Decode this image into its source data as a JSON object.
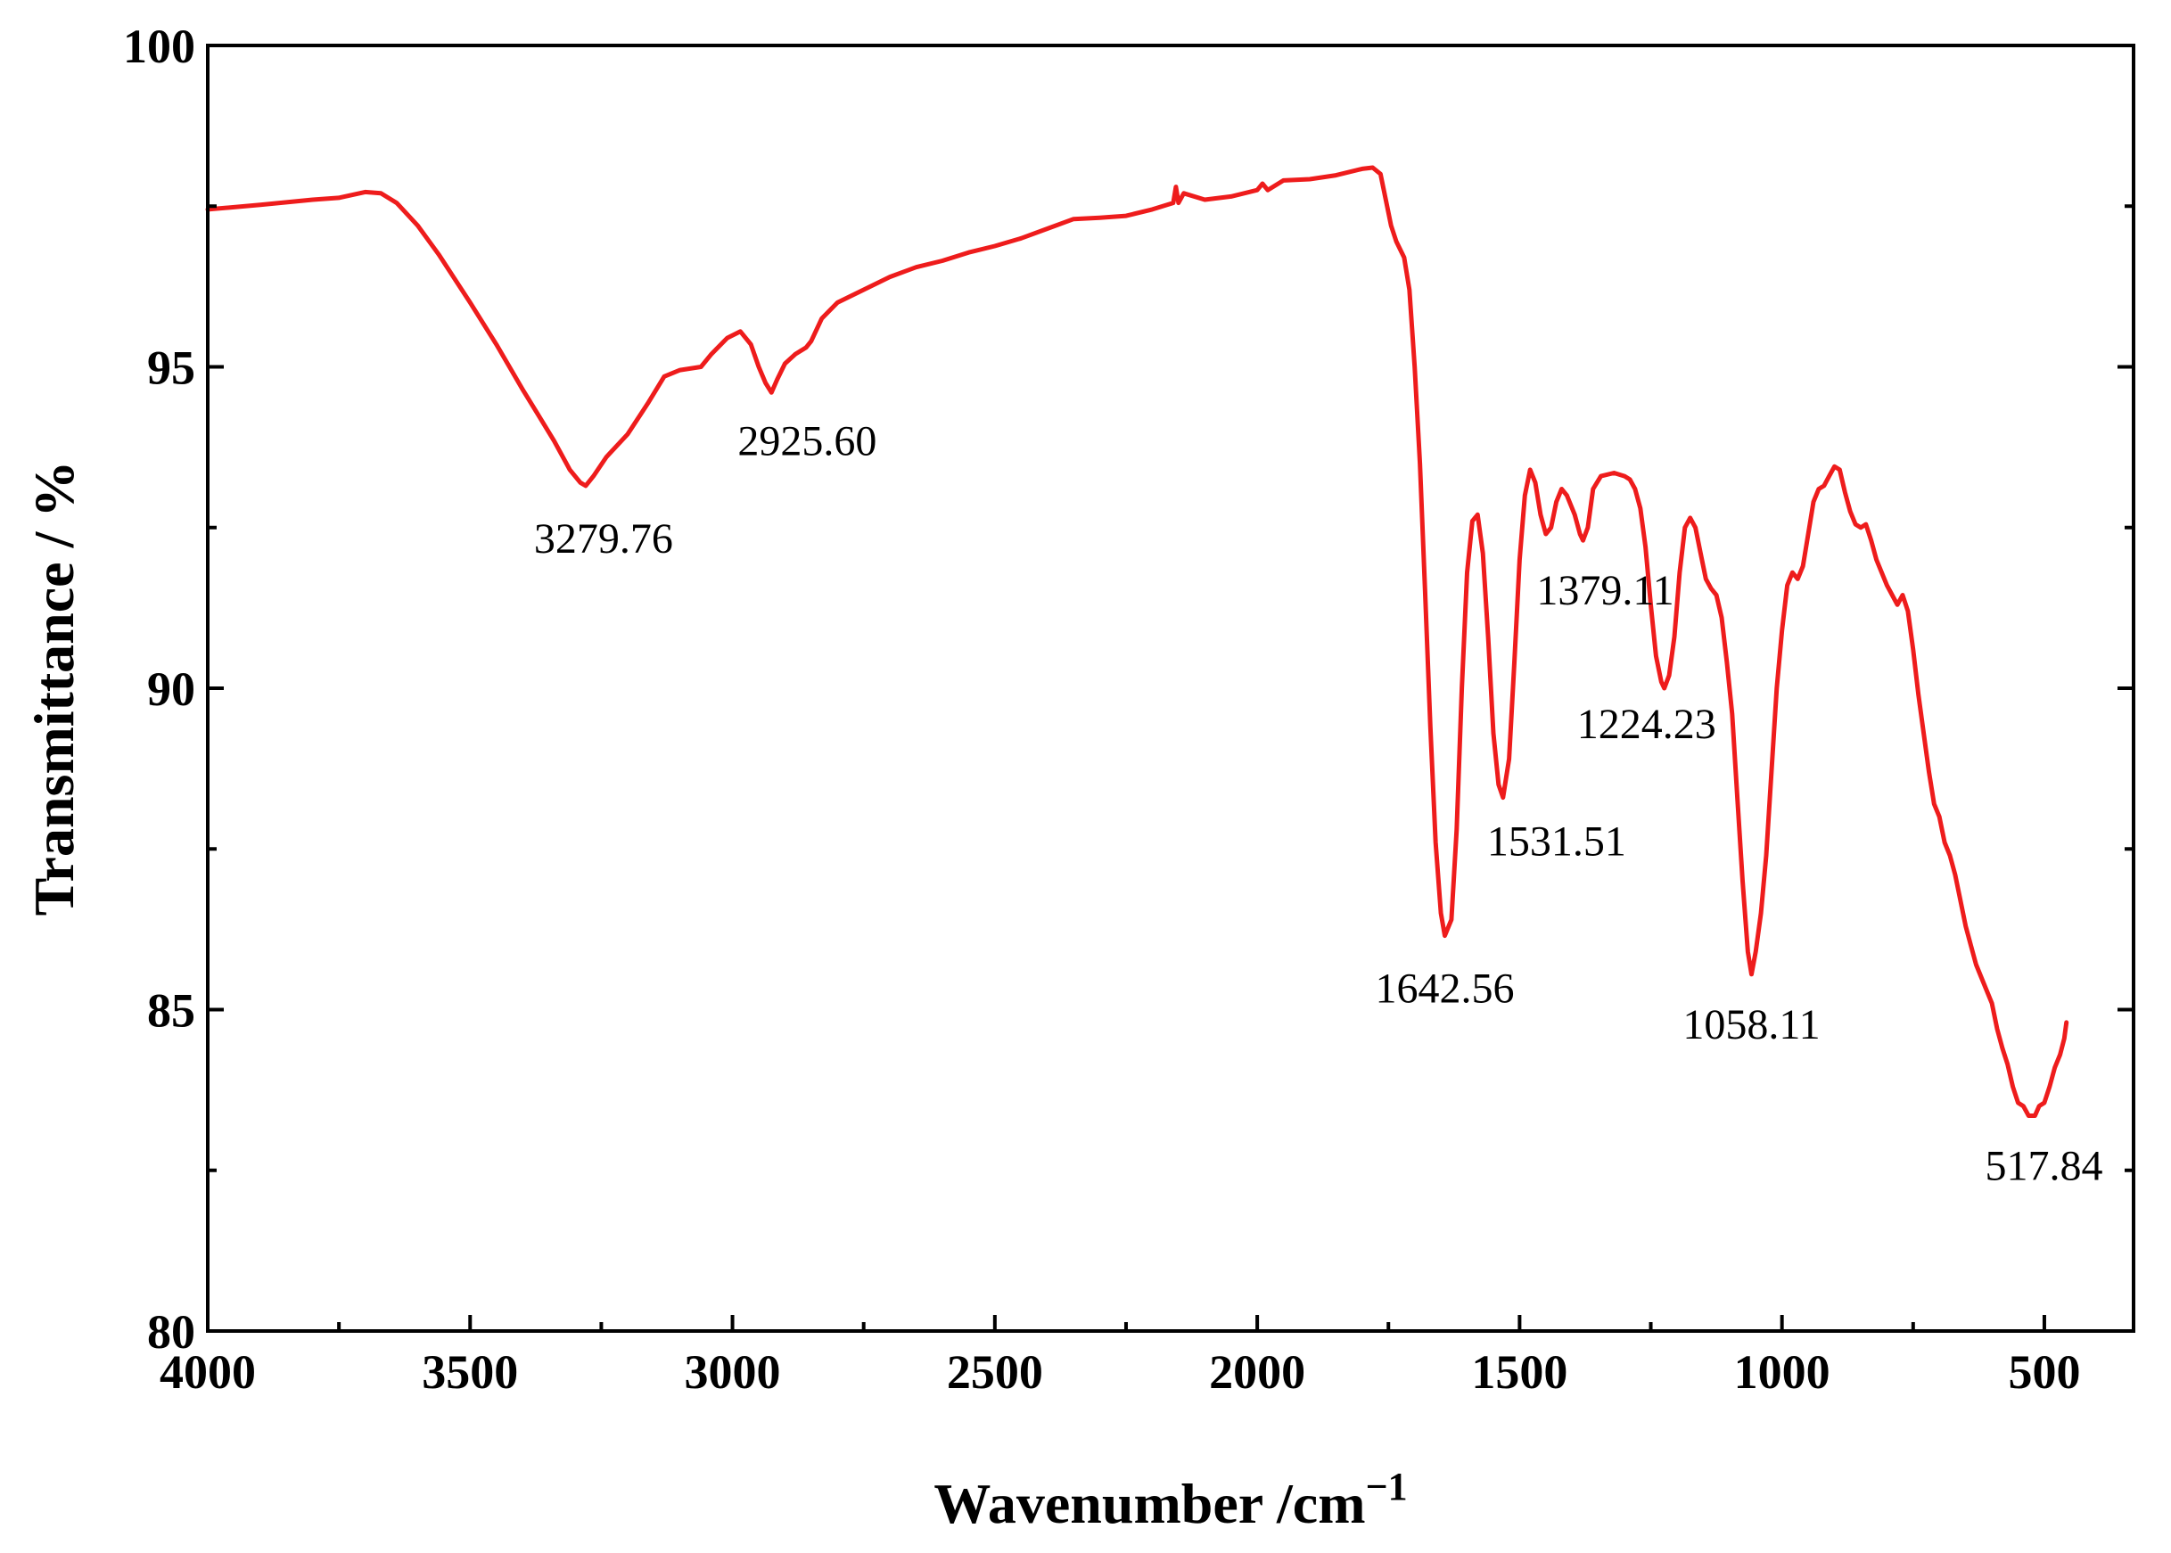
{
  "chart_data": {
    "type": "line",
    "xlabel": "Wavenumber /cm",
    "xlabel_superscript": "−1",
    "ylabel": "Transmittance / %",
    "xlim": [
      4000,
      330
    ],
    "ylim": [
      80,
      100
    ],
    "x_reversed": true,
    "x_ticks": [
      4000,
      3500,
      3000,
      2500,
      2000,
      1500,
      1000,
      500
    ],
    "x_tick_labels": [
      "4000",
      "3500",
      "3000",
      "2500",
      "2000",
      "1500",
      "1000",
      "500"
    ],
    "x_minor_ticks": [
      3750,
      3250,
      2750,
      2250,
      1750,
      1250,
      750
    ],
    "y_ticks": [
      80,
      85,
      90,
      95,
      100
    ],
    "y_tick_labels": [
      "80",
      "85",
      "90",
      "95",
      "100"
    ],
    "y_minor_ticks": [
      82.5,
      87.5,
      92.5,
      97.5
    ],
    "grid": false,
    "line_color": "#ee1c1c",
    "series": [
      {
        "color": "#ee1c1c",
        "points": [
          [
            4000,
            97.45
          ],
          [
            3900,
            97.52
          ],
          [
            3800,
            97.6
          ],
          [
            3750,
            97.63
          ],
          [
            3700,
            97.72
          ],
          [
            3670,
            97.7
          ],
          [
            3640,
            97.55
          ],
          [
            3600,
            97.2
          ],
          [
            3560,
            96.75
          ],
          [
            3500,
            96.0
          ],
          [
            3450,
            95.35
          ],
          [
            3400,
            94.65
          ],
          [
            3370,
            94.25
          ],
          [
            3340,
            93.85
          ],
          [
            3310,
            93.4
          ],
          [
            3290,
            93.2
          ],
          [
            3279.76,
            93.15
          ],
          [
            3265,
            93.3
          ],
          [
            3240,
            93.6
          ],
          [
            3200,
            93.95
          ],
          [
            3160,
            94.45
          ],
          [
            3130,
            94.85
          ],
          [
            3100,
            94.95
          ],
          [
            3060,
            95.0
          ],
          [
            3040,
            95.2
          ],
          [
            3010,
            95.45
          ],
          [
            2985,
            95.55
          ],
          [
            2965,
            95.35
          ],
          [
            2950,
            95.0
          ],
          [
            2937,
            94.75
          ],
          [
            2925.6,
            94.6
          ],
          [
            2915,
            94.8
          ],
          [
            2900,
            95.05
          ],
          [
            2880,
            95.2
          ],
          [
            2860,
            95.3
          ],
          [
            2850,
            95.4
          ],
          [
            2830,
            95.75
          ],
          [
            2800,
            96.0
          ],
          [
            2750,
            96.2
          ],
          [
            2700,
            96.4
          ],
          [
            2650,
            96.55
          ],
          [
            2600,
            96.65
          ],
          [
            2550,
            96.78
          ],
          [
            2500,
            96.88
          ],
          [
            2450,
            97.0
          ],
          [
            2400,
            97.15
          ],
          [
            2350,
            97.3
          ],
          [
            2300,
            97.32
          ],
          [
            2250,
            97.35
          ],
          [
            2200,
            97.45
          ],
          [
            2160,
            97.55
          ],
          [
            2155,
            97.8
          ],
          [
            2150,
            97.55
          ],
          [
            2140,
            97.7
          ],
          [
            2100,
            97.6
          ],
          [
            2050,
            97.65
          ],
          [
            2000,
            97.75
          ],
          [
            1990,
            97.85
          ],
          [
            1980,
            97.75
          ],
          [
            1950,
            97.9
          ],
          [
            1900,
            97.92
          ],
          [
            1850,
            97.98
          ],
          [
            1800,
            98.08
          ],
          [
            1780,
            98.1
          ],
          [
            1765,
            98.0
          ],
          [
            1755,
            97.6
          ],
          [
            1745,
            97.2
          ],
          [
            1735,
            96.95
          ],
          [
            1720,
            96.7
          ],
          [
            1710,
            96.2
          ],
          [
            1700,
            95.0
          ],
          [
            1690,
            93.5
          ],
          [
            1680,
            91.5
          ],
          [
            1670,
            89.4
          ],
          [
            1660,
            87.6
          ],
          [
            1650,
            86.5
          ],
          [
            1642.56,
            86.15
          ],
          [
            1630,
            86.4
          ],
          [
            1620,
            87.8
          ],
          [
            1610,
            90.0
          ],
          [
            1600,
            91.8
          ],
          [
            1590,
            92.6
          ],
          [
            1580,
            92.7
          ],
          [
            1570,
            92.1
          ],
          [
            1560,
            90.8
          ],
          [
            1550,
            89.3
          ],
          [
            1540,
            88.5
          ],
          [
            1531.51,
            88.3
          ],
          [
            1520,
            88.9
          ],
          [
            1510,
            90.4
          ],
          [
            1500,
            92.0
          ],
          [
            1490,
            93.0
          ],
          [
            1480,
            93.4
          ],
          [
            1470,
            93.2
          ],
          [
            1460,
            92.7
          ],
          [
            1450,
            92.4
          ],
          [
            1440,
            92.5
          ],
          [
            1430,
            92.9
          ],
          [
            1420,
            93.1
          ],
          [
            1410,
            93.0
          ],
          [
            1395,
            92.7
          ],
          [
            1385,
            92.4
          ],
          [
            1379.11,
            92.3
          ],
          [
            1370,
            92.5
          ],
          [
            1360,
            93.1
          ],
          [
            1345,
            93.3
          ],
          [
            1320,
            93.35
          ],
          [
            1300,
            93.3
          ],
          [
            1290,
            93.25
          ],
          [
            1280,
            93.1
          ],
          [
            1270,
            92.8
          ],
          [
            1260,
            92.2
          ],
          [
            1250,
            91.3
          ],
          [
            1240,
            90.5
          ],
          [
            1230,
            90.1
          ],
          [
            1224.23,
            90.0
          ],
          [
            1215,
            90.2
          ],
          [
            1205,
            90.8
          ],
          [
            1195,
            91.8
          ],
          [
            1185,
            92.5
          ],
          [
            1175,
            92.65
          ],
          [
            1165,
            92.5
          ],
          [
            1155,
            92.1
          ],
          [
            1145,
            91.7
          ],
          [
            1135,
            91.55
          ],
          [
            1125,
            91.45
          ],
          [
            1115,
            91.1
          ],
          [
            1105,
            90.4
          ],
          [
            1095,
            89.6
          ],
          [
            1085,
            88.3
          ],
          [
            1075,
            87.0
          ],
          [
            1065,
            85.9
          ],
          [
            1058.11,
            85.55
          ],
          [
            1050,
            85.9
          ],
          [
            1040,
            86.5
          ],
          [
            1030,
            87.4
          ],
          [
            1020,
            88.7
          ],
          [
            1010,
            90.0
          ],
          [
            1000,
            90.9
          ],
          [
            990,
            91.6
          ],
          [
            980,
            91.8
          ],
          [
            970,
            91.7
          ],
          [
            960,
            91.9
          ],
          [
            950,
            92.4
          ],
          [
            940,
            92.9
          ],
          [
            930,
            93.1
          ],
          [
            920,
            93.15
          ],
          [
            910,
            93.3
          ],
          [
            900,
            93.45
          ],
          [
            890,
            93.4
          ],
          [
            880,
            93.05
          ],
          [
            870,
            92.75
          ],
          [
            860,
            92.55
          ],
          [
            850,
            92.5
          ],
          [
            840,
            92.55
          ],
          [
            830,
            92.3
          ],
          [
            820,
            92.0
          ],
          [
            810,
            91.8
          ],
          [
            800,
            91.6
          ],
          [
            790,
            91.45
          ],
          [
            780,
            91.3
          ],
          [
            770,
            91.45
          ],
          [
            760,
            91.2
          ],
          [
            750,
            90.6
          ],
          [
            740,
            89.9
          ],
          [
            730,
            89.3
          ],
          [
            720,
            88.7
          ],
          [
            710,
            88.2
          ],
          [
            700,
            88.0
          ],
          [
            690,
            87.6
          ],
          [
            680,
            87.4
          ],
          [
            670,
            87.1
          ],
          [
            660,
            86.7
          ],
          [
            650,
            86.3
          ],
          [
            640,
            86.0
          ],
          [
            630,
            85.7
          ],
          [
            620,
            85.5
          ],
          [
            610,
            85.3
          ],
          [
            600,
            85.1
          ],
          [
            590,
            84.7
          ],
          [
            580,
            84.4
          ],
          [
            570,
            84.15
          ],
          [
            560,
            83.8
          ],
          [
            550,
            83.55
          ],
          [
            540,
            83.5
          ],
          [
            530,
            83.35
          ],
          [
            517.84,
            83.35
          ],
          [
            510,
            83.5
          ],
          [
            500,
            83.55
          ],
          [
            490,
            83.8
          ],
          [
            480,
            84.1
          ],
          [
            470,
            84.3
          ],
          [
            462,
            84.55
          ],
          [
            458,
            84.8
          ]
        ]
      }
    ],
    "annotations": [
      {
        "text": "3279.76",
        "x": 3279.76,
        "y": 93.15
      },
      {
        "text": "2925.60",
        "x": 2925.6,
        "y": 94.6
      },
      {
        "text": "1642.56",
        "x": 1642.56,
        "y": 86.15
      },
      {
        "text": "1531.51",
        "x": 1531.51,
        "y": 88.3
      },
      {
        "text": "1379.11",
        "x": 1379.11,
        "y": 92.3
      },
      {
        "text": "1224.23",
        "x": 1224.23,
        "y": 90.0
      },
      {
        "text": "1058.11",
        "x": 1058.11,
        "y": 85.55
      },
      {
        "text": "517.84",
        "x": 517.84,
        "y": 83.35
      }
    ]
  }
}
